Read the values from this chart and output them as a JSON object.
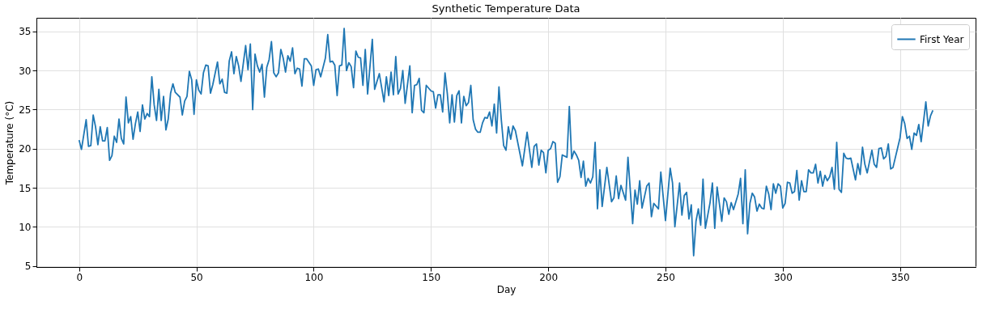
{
  "chart_data": {
    "type": "line",
    "title": "Synthetic Temperature Data",
    "xlabel": "Day",
    "ylabel": "Temperature (°C)",
    "xlim": [
      -18.2,
      382.2
    ],
    "ylim": [
      4.85,
      36.75
    ],
    "xticks": [
      0,
      50,
      100,
      150,
      200,
      250,
      300,
      350
    ],
    "yticks": [
      5,
      10,
      15,
      20,
      25,
      30,
      35
    ],
    "grid": true,
    "legend": "top right",
    "line_style": "solid",
    "marker": "none",
    "x": [
      0,
      1,
      3,
      4,
      5,
      6,
      7,
      8,
      9,
      10,
      11,
      12,
      13,
      14,
      15,
      16,
      17,
      18,
      19,
      20,
      21,
      22,
      23,
      24,
      25,
      26,
      27,
      28,
      29,
      30,
      31,
      32,
      33,
      34,
      35,
      36,
      37,
      38,
      39,
      40,
      41,
      43,
      44,
      45,
      46,
      47,
      48,
      49,
      50,
      51,
      52,
      53,
      54,
      55,
      56,
      57,
      59,
      60,
      61,
      62,
      63,
      64,
      65,
      66,
      67,
      68,
      69,
      71,
      72,
      73,
      74,
      75,
      76,
      77,
      78,
      79,
      80,
      81,
      82,
      83,
      84,
      85,
      86,
      87,
      88,
      89,
      90,
      91,
      92,
      93,
      94,
      95,
      96,
      97,
      99,
      100,
      101,
      102,
      103,
      105,
      106,
      107,
      108,
      109,
      110,
      111,
      112,
      113,
      114,
      115,
      116,
      117,
      118,
      119,
      120,
      121,
      122,
      123,
      125,
      126,
      128,
      130,
      131,
      132,
      133,
      134,
      135,
      136,
      137,
      138,
      139,
      141,
      142,
      143,
      144,
      145,
      146,
      147,
      148,
      150,
      151,
      152,
      153,
      154,
      155,
      156,
      157,
      158,
      159,
      160,
      161,
      162,
      163,
      164,
      165,
      166,
      167,
      168,
      169,
      170,
      171,
      172,
      173,
      174,
      175,
      176,
      177,
      178,
      179,
      180,
      181,
      182,
      183,
      184,
      185,
      186,
      189,
      191,
      193,
      194,
      195,
      196,
      197,
      198,
      199,
      200,
      201,
      202,
      203,
      204,
      205,
      206,
      208,
      209,
      210,
      211,
      212,
      213,
      214,
      215,
      216,
      217,
      218,
      219,
      220,
      221,
      222,
      223,
      225,
      227,
      228,
      229,
      230,
      231,
      233,
      234,
      236,
      237,
      238,
      239,
      240,
      242,
      243,
      244,
      245,
      247,
      248,
      250,
      252,
      253,
      254,
      256,
      257,
      258,
      259,
      260,
      261,
      262,
      263,
      264,
      265,
      266,
      267,
      269,
      270,
      271,
      272,
      274,
      275,
      276,
      277,
      278,
      279,
      281,
      282,
      283,
      284,
      285,
      286,
      287,
      288,
      289,
      290,
      291,
      292,
      293,
      294,
      295,
      296,
      297,
      298,
      299,
      300,
      301,
      302,
      303,
      304,
      305,
      306,
      307,
      308,
      309,
      310,
      311,
      312,
      313,
      314,
      315,
      316,
      317,
      318,
      319,
      320,
      321,
      322,
      323,
      324,
      325,
      326,
      327,
      328,
      329,
      331,
      332,
      333,
      334,
      335,
      336,
      338,
      339,
      340,
      341,
      342,
      343,
      344,
      345,
      346,
      347,
      350,
      351,
      352,
      353,
      354,
      355,
      356,
      357,
      358,
      359,
      361,
      362,
      363,
      364
    ],
    "series": [
      {
        "name": "First Year",
        "color": "#1f77b4",
        "values": [
          21.1,
          19.9,
          23.7,
          20.3,
          20.4,
          24.3,
          22.8,
          20.5,
          22.8,
          21.0,
          21.0,
          22.7,
          18.5,
          19.1,
          21.6,
          20.8,
          23.8,
          21.3,
          20.6,
          26.6,
          23.3,
          24.1,
          21.2,
          23.2,
          24.7,
          22.2,
          25.6,
          23.8,
          24.5,
          24.1,
          29.2,
          25.6,
          23.6,
          27.6,
          23.6,
          26.7,
          22.4,
          23.8,
          27.1,
          28.3,
          27.2,
          26.6,
          24.3,
          26.1,
          26.7,
          29.9,
          28.8,
          24.4,
          28.8,
          27.5,
          27.0,
          29.7,
          30.7,
          30.6,
          27.1,
          28.2,
          31.1,
          28.3,
          28.9,
          27.2,
          27.1,
          31.2,
          32.4,
          29.6,
          31.8,
          30.6,
          28.6,
          33.2,
          30.1,
          33.4,
          25.0,
          32.1,
          30.6,
          29.8,
          30.8,
          26.6,
          30.4,
          31.4,
          33.7,
          29.7,
          29.2,
          29.7,
          32.7,
          31.6,
          29.8,
          31.9,
          31.2,
          32.9,
          29.6,
          30.3,
          30.2,
          28.0,
          31.5,
          31.5,
          30.6,
          28.1,
          30.1,
          30.2,
          29.2,
          31.6,
          34.6,
          31.1,
          31.2,
          30.7,
          26.8,
          30.6,
          30.7,
          35.4,
          30.0,
          31.0,
          30.5,
          27.8,
          32.5,
          31.7,
          31.6,
          28.1,
          32.7,
          27.0,
          34.0,
          27.6,
          29.6,
          26.0,
          29.2,
          26.8,
          29.8,
          26.9,
          31.8,
          27.0,
          27.7,
          30.0,
          25.8,
          30.6,
          24.6,
          28.1,
          28.2,
          29.0,
          24.9,
          24.6,
          28.1,
          27.4,
          27.3,
          25.2,
          26.9,
          26.9,
          24.7,
          29.7,
          27.0,
          23.3,
          26.9,
          23.4,
          26.8,
          27.4,
          23.3,
          26.7,
          25.5,
          25.9,
          28.1,
          23.7,
          22.5,
          22.1,
          22.1,
          23.3,
          24.0,
          23.9,
          24.7,
          22.9,
          25.7,
          22.0,
          27.9,
          23.7,
          20.4,
          19.8,
          22.8,
          21.2,
          22.9,
          22.3,
          17.8,
          22.1,
          17.6,
          20.3,
          20.6,
          17.9,
          19.8,
          19.5,
          16.9,
          19.8,
          20.0,
          20.9,
          20.7,
          15.7,
          16.4,
          19.2,
          18.9,
          25.4,
          18.7,
          19.7,
          19.2,
          18.5,
          16.3,
          18.4,
          15.2,
          16.2,
          15.6,
          16.4,
          20.8,
          12.3,
          17.3,
          12.6,
          17.6,
          13.2,
          13.7,
          16.5,
          13.6,
          15.3,
          13.4,
          18.9,
          10.4,
          14.7,
          12.9,
          15.9,
          12.4,
          15.2,
          15.6,
          11.3,
          13.0,
          12.3,
          17.0,
          10.8,
          17.5,
          15.6,
          10.0,
          15.6,
          11.5,
          14.0,
          14.4,
          11.0,
          12.8,
          6.3,
          10.7,
          12.3,
          10.2,
          16.1,
          9.8,
          13.1,
          15.6,
          9.8,
          15.1,
          10.7,
          13.7,
          13.2,
          11.6,
          13.1,
          12.2,
          14.2,
          16.2,
          10.4,
          17.3,
          9.1,
          13.0,
          14.3,
          13.8,
          12.0,
          12.9,
          12.4,
          12.3,
          15.2,
          14.2,
          12.2,
          15.5,
          14.3,
          15.5,
          15.2,
          12.4,
          13.0,
          15.7,
          15.6,
          14.3,
          14.5,
          17.2,
          13.4,
          15.9,
          14.5,
          14.5,
          17.3,
          16.9,
          16.9,
          18.0,
          15.6,
          17.1,
          15.2,
          16.6,
          15.9,
          16.4,
          17.6,
          14.8,
          20.8,
          14.8,
          14.4,
          19.4,
          18.8,
          18.7,
          18.8,
          16.0,
          18.1,
          16.7,
          20.2,
          18.0,
          16.9,
          19.8,
          18.0,
          17.6,
          20.0,
          20.1,
          18.7,
          19.0,
          20.6,
          17.4,
          17.6,
          21.4,
          24.1,
          23.2,
          21.3,
          21.6,
          19.9,
          22.0,
          21.7,
          23.1,
          20.9,
          26.0,
          22.9,
          24.2,
          24.9
        ]
      }
    ]
  }
}
